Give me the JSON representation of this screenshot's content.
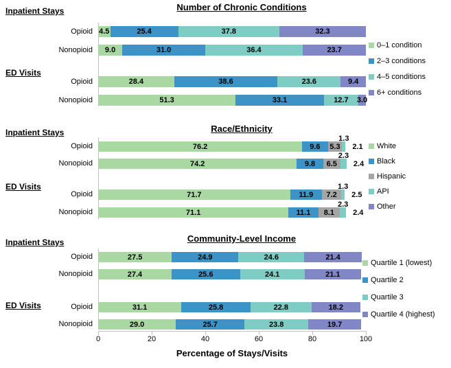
{
  "x_axis": {
    "ticks": [
      0,
      20,
      40,
      60,
      80,
      100
    ],
    "max": 100,
    "title": "Percentage of Stays/Visits"
  },
  "palette": {
    "green": "#A9D8A3",
    "blue": "#3E93C6",
    "teal": "#7FCCC4",
    "purple": "#8186C6",
    "gray": "#A5A5A5",
    "axis_line": "#BFBFBF"
  },
  "chart_data": [
    {
      "type": "bar",
      "orientation": "horizontal",
      "stacked": true,
      "title": "Number of Chronic Conditions",
      "xlim": [
        0,
        100
      ],
      "series_labels": [
        "0–1 condition",
        "2–3 conditions",
        "4–5 conditions",
        "6+ conditions"
      ],
      "series_colors": [
        "#A9D8A3",
        "#3E93C6",
        "#7FCCC4",
        "#8186C6"
      ],
      "label_placement": [
        "inside",
        "inside",
        "inside",
        "inside"
      ],
      "sections": [
        {
          "label": "Inpatient Stays",
          "rows": [
            {
              "label": "Opioid",
              "values": [
                4.5,
                25.4,
                37.8,
                32.3
              ]
            },
            {
              "label": "Nonopioid",
              "values": [
                9.0,
                31.0,
                36.4,
                23.7
              ]
            }
          ]
        },
        {
          "label": "ED Visits",
          "rows": [
            {
              "label": "Opioid",
              "values": [
                28.4,
                38.6,
                23.6,
                9.4
              ]
            },
            {
              "label": "Nonopioid",
              "values": [
                51.3,
                33.1,
                12.7,
                3.0
              ]
            }
          ]
        }
      ]
    },
    {
      "type": "bar",
      "orientation": "horizontal",
      "stacked": true,
      "title": "Race/Ethnicity",
      "xlim": [
        0,
        100
      ],
      "series_labels": [
        "White",
        "Black",
        "Hispanic",
        "API",
        "Other"
      ],
      "series_colors": [
        "#A9D8A3",
        "#3E93C6",
        "#A5A5A5",
        "#7FCCC4",
        "#8186C6"
      ],
      "label_placement": [
        "inside",
        "inside",
        "inside",
        "above",
        "right"
      ],
      "sections": [
        {
          "label": "Inpatient Stays",
          "rows": [
            {
              "label": "Opioid",
              "values": [
                76.2,
                9.6,
                5.3,
                1.3,
                2.1
              ]
            },
            {
              "label": "Nonopioid",
              "values": [
                74.2,
                9.8,
                6.5,
                2.3,
                2.4
              ]
            }
          ]
        },
        {
          "label": "ED Visits",
          "rows": [
            {
              "label": "Opioid",
              "values": [
                71.7,
                11.9,
                7.2,
                1.3,
                2.5
              ]
            },
            {
              "label": "Nonopioid",
              "values": [
                71.1,
                11.1,
                8.1,
                2.3,
                2.4
              ]
            }
          ]
        }
      ]
    },
    {
      "type": "bar",
      "orientation": "horizontal",
      "stacked": true,
      "title": "Community-Level Income",
      "xlim": [
        0,
        100
      ],
      "series_labels": [
        "Quartile 1 (lowest)",
        "Quartile 2",
        "Quartile 3",
        "Quartile 4 (highest)"
      ],
      "series_colors": [
        "#A9D8A3",
        "#3E93C6",
        "#7FCCC4",
        "#8186C6"
      ],
      "label_placement": [
        "inside",
        "inside",
        "inside",
        "inside"
      ],
      "sections": [
        {
          "label": "Inpatient Stays",
          "rows": [
            {
              "label": "Opioid",
              "values": [
                27.5,
                24.9,
                24.6,
                21.4
              ]
            },
            {
              "label": "Nonopioid",
              "values": [
                27.4,
                25.6,
                24.1,
                21.1
              ]
            }
          ]
        },
        {
          "label": "ED Visits",
          "rows": [
            {
              "label": "Opioid",
              "values": [
                31.1,
                25.8,
                22.8,
                18.2
              ]
            },
            {
              "label": "Nonopioid",
              "values": [
                29.0,
                25.7,
                23.8,
                19.7
              ]
            }
          ]
        }
      ]
    }
  ]
}
